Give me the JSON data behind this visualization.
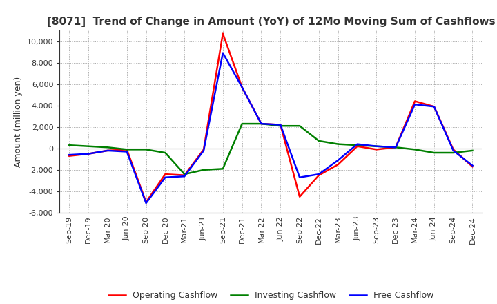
{
  "title": "[8071]  Trend of Change in Amount (YoY) of 12Mo Moving Sum of Cashflows",
  "ylabel": "Amount (million yen)",
  "background_color": "#ffffff",
  "grid_color": "#aaaaaa",
  "x_labels": [
    "Sep-19",
    "Dec-19",
    "Mar-20",
    "Jun-20",
    "Sep-20",
    "Dec-20",
    "Mar-21",
    "Jun-21",
    "Sep-21",
    "Dec-21",
    "Mar-22",
    "Jun-22",
    "Sep-22",
    "Dec-22",
    "Mar-23",
    "Jun-23",
    "Sep-23",
    "Dec-23",
    "Mar-24",
    "Jun-24",
    "Sep-24",
    "Dec-24"
  ],
  "operating": [
    -700,
    -500,
    -200,
    -100,
    -5000,
    -2400,
    -2500,
    -100,
    10700,
    5700,
    2300,
    2200,
    -4500,
    -2500,
    -1500,
    200,
    -100,
    100,
    4400,
    3900,
    -100,
    -1700
  ],
  "investing": [
    300,
    200,
    100,
    -100,
    -100,
    -400,
    -2400,
    -2000,
    -1900,
    2300,
    2300,
    2100,
    2100,
    700,
    400,
    300,
    200,
    100,
    -100,
    -400,
    -400,
    -200
  ],
  "free": [
    -600,
    -500,
    -200,
    -300,
    -5100,
    -2700,
    -2600,
    -200,
    8900,
    5700,
    2300,
    2200,
    -2700,
    -2400,
    -1100,
    400,
    200,
    100,
    4100,
    3900,
    -200,
    -1600
  ],
  "ylim": [
    -6000,
    11000
  ],
  "yticks": [
    -6000,
    -4000,
    -2000,
    0,
    2000,
    4000,
    6000,
    8000,
    10000
  ],
  "colors": {
    "operating": "#ff0000",
    "investing": "#008000",
    "free": "#0000ff"
  },
  "legend": {
    "operating": "Operating Cashflow",
    "investing": "Investing Cashflow",
    "free": "Free Cashflow"
  },
  "title_color": "#333333",
  "tick_color": "#333333",
  "spine_color": "#333333"
}
